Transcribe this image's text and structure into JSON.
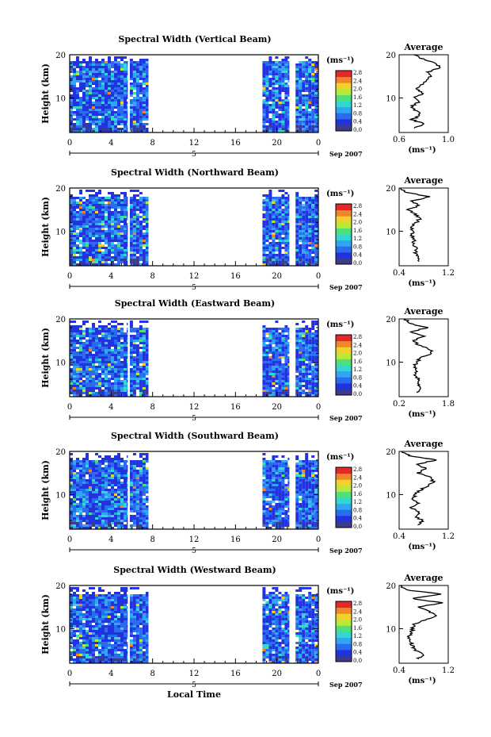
{
  "figure": {
    "x_axis_title": "Local Time",
    "date_label": "Sep 2007",
    "day_label": "5",
    "colorbar_unit": "(ms⁻¹)",
    "colorbar_ticks": [
      "0.0",
      "0.4",
      "0.8",
      "1.2",
      "1.6",
      "2.0",
      "2.4",
      "2.8"
    ],
    "average_title": "Average",
    "average_xlabel": "(ms⁻¹)",
    "height_label": "Height (km)",
    "colors": {
      "scale": [
        "#3b3b8a",
        "#2233dd",
        "#2a6cf0",
        "#2fa6f2",
        "#33d6d2",
        "#4fe07a",
        "#b8e83a",
        "#f2d22a",
        "#f0862a",
        "#e02a2a"
      ],
      "background": "#ffffff",
      "axis": "#000000",
      "line": "#000000"
    }
  },
  "chart_data": [
    {
      "type": "heatmap",
      "title": "Spectral Width (Vertical Beam)",
      "xlabel": "Local Time",
      "ylabel": "Height (km)",
      "xlim": [
        0,
        24
      ],
      "ylim": [
        2,
        20
      ],
      "xticks": [
        "0",
        "4",
        "8",
        "12",
        "16",
        "20",
        "0"
      ],
      "yticks": [
        "10",
        "20"
      ],
      "colorbar": {
        "label": "(ms⁻¹)",
        "range": [
          0.0,
          2.8
        ]
      },
      "data_intervals_hours": [
        [
          0,
          5.6
        ],
        [
          5.8,
          7.6
        ],
        [
          18.6,
          21.2
        ],
        [
          21.8,
          24
        ]
      ],
      "top_of_data_km": 19,
      "average_profile": {
        "title": "Average",
        "xlabel": "(ms⁻¹)",
        "xlim": [
          0.6,
          1.0
        ],
        "xticks": [
          "0.6",
          "1.0"
        ],
        "height_km": [
          3,
          4,
          5,
          6,
          7,
          8,
          9,
          10,
          11,
          12,
          13,
          14,
          15,
          16,
          17,
          18,
          19,
          20
        ],
        "value": [
          0.72,
          0.8,
          0.7,
          0.78,
          0.74,
          0.7,
          0.76,
          0.72,
          0.8,
          0.74,
          0.78,
          0.82,
          0.86,
          0.84,
          0.93,
          0.9,
          0.8,
          0.72
        ]
      }
    },
    {
      "type": "heatmap",
      "title": "Spectral Width (Northward Beam)",
      "xlabel": "Local Time",
      "ylabel": "Height (km)",
      "xlim": [
        0,
        24
      ],
      "ylim": [
        2,
        20
      ],
      "xticks": [
        "0",
        "4",
        "8",
        "12",
        "16",
        "20",
        "0"
      ],
      "yticks": [
        "10",
        "20"
      ],
      "colorbar": {
        "label": "(ms⁻¹)",
        "range": [
          0.0,
          2.8
        ]
      },
      "data_intervals_hours": [
        [
          0,
          5.6
        ],
        [
          5.8,
          7.6
        ],
        [
          18.6,
          21.2
        ],
        [
          21.8,
          24
        ]
      ],
      "top_of_data_km": 18,
      "average_profile": {
        "title": "Average",
        "xlabel": "(ms⁻¹)",
        "xlim": [
          0.4,
          1.2
        ],
        "xticks": [
          "0.4",
          "1.2"
        ],
        "height_km": [
          3,
          4,
          5,
          6,
          7,
          8,
          9,
          10,
          11,
          12,
          13,
          14,
          15,
          16,
          17,
          18,
          19,
          20
        ],
        "value": [
          0.7,
          0.74,
          0.66,
          0.7,
          0.62,
          0.64,
          0.6,
          0.62,
          0.6,
          0.68,
          0.74,
          0.66,
          0.56,
          0.72,
          0.6,
          0.9,
          0.5,
          0.42
        ]
      }
    },
    {
      "type": "heatmap",
      "title": "Spectral Width (Eastward Beam)",
      "xlabel": "Local Time",
      "ylabel": "Height (km)",
      "xlim": [
        0,
        24
      ],
      "ylim": [
        2,
        20
      ],
      "xticks": [
        "0",
        "4",
        "8",
        "12",
        "16",
        "20",
        "0"
      ],
      "yticks": [
        "10",
        "20"
      ],
      "colorbar": {
        "label": "(ms⁻¹)",
        "range": [
          0.0,
          2.8
        ]
      },
      "data_intervals_hours": [
        [
          0,
          5.6
        ],
        [
          5.8,
          7.6
        ],
        [
          18.6,
          21.2
        ],
        [
          21.8,
          24
        ]
      ],
      "top_of_data_km": 18,
      "average_profile": {
        "title": "Average",
        "xlabel": "(ms⁻¹)",
        "xlim": [
          0.2,
          1.8
        ],
        "xticks": [
          "0.2",
          "1.8"
        ],
        "height_km": [
          3,
          4,
          5,
          6,
          7,
          8,
          9,
          10,
          11,
          12,
          13,
          14,
          15,
          16,
          17,
          18,
          19,
          20
        ],
        "value": [
          0.8,
          0.9,
          0.78,
          0.82,
          0.7,
          0.8,
          0.72,
          0.76,
          0.9,
          1.3,
          1.2,
          0.8,
          0.7,
          1.0,
          0.6,
          1.1,
          0.5,
          0.4
        ]
      }
    },
    {
      "type": "heatmap",
      "title": "Spectral Width (Southward Beam)",
      "xlabel": "Local Time",
      "ylabel": "Height (km)",
      "xlim": [
        0,
        24
      ],
      "ylim": [
        2,
        20
      ],
      "xticks": [
        "0",
        "4",
        "8",
        "12",
        "16",
        "20",
        "0"
      ],
      "yticks": [
        "10",
        "20"
      ],
      "colorbar": {
        "label": "(ms⁻¹)",
        "range": [
          0.0,
          2.8
        ]
      },
      "data_intervals_hours": [
        [
          0,
          5.6
        ],
        [
          5.8,
          7.6
        ],
        [
          18.6,
          21.2
        ],
        [
          21.8,
          24
        ]
      ],
      "top_of_data_km": 18,
      "average_profile": {
        "title": "Average",
        "xlabel": "(ms⁻¹)",
        "xlim": [
          0.4,
          1.2
        ],
        "xticks": [
          "0.4",
          "1.2"
        ],
        "height_km": [
          3,
          4,
          5,
          6,
          7,
          8,
          9,
          10,
          11,
          12,
          13,
          14,
          15,
          16,
          17,
          18,
          19,
          20
        ],
        "value": [
          0.7,
          0.78,
          0.66,
          0.74,
          0.6,
          0.7,
          0.62,
          0.66,
          0.74,
          0.86,
          0.96,
          0.9,
          0.7,
          0.84,
          0.68,
          1.0,
          0.58,
          0.44
        ]
      }
    },
    {
      "type": "heatmap",
      "title": "Spectral Width (Westward Beam)",
      "xlabel": "Local Time",
      "ylabel": "Height (km)",
      "xlim": [
        0,
        24
      ],
      "ylim": [
        2,
        20
      ],
      "xticks": [
        "0",
        "4",
        "8",
        "12",
        "16",
        "20",
        "0"
      ],
      "yticks": [
        "10",
        "20"
      ],
      "colorbar": {
        "label": "(ms⁻¹)",
        "range": [
          0.0,
          2.8
        ]
      },
      "data_intervals_hours": [
        [
          0,
          5.6
        ],
        [
          5.8,
          7.6
        ],
        [
          18.6,
          21.2
        ],
        [
          21.8,
          24
        ]
      ],
      "top_of_data_km": 18,
      "average_profile": {
        "title": "Average",
        "xlabel": "(ms⁻¹)",
        "xlim": [
          0.4,
          1.2
        ],
        "xticks": [
          "0.4",
          "1.2"
        ],
        "height_km": [
          3,
          4,
          5,
          6,
          7,
          8,
          9,
          10,
          11,
          12,
          13,
          14,
          15,
          16,
          17,
          18,
          19,
          20
        ],
        "value": [
          0.7,
          0.8,
          0.66,
          0.62,
          0.58,
          0.56,
          0.6,
          0.62,
          0.64,
          0.8,
          1.0,
          0.9,
          0.7,
          1.1,
          0.6,
          1.1,
          0.5,
          0.42
        ]
      }
    }
  ]
}
